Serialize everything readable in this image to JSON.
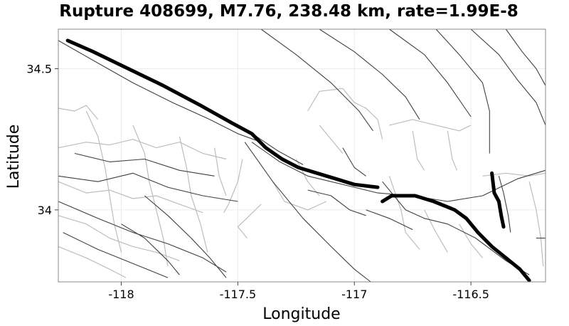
{
  "chart_data": {
    "type": "map",
    "title": "Rupture 408699, M7.76, 238.48 km, rate=1.99E-8",
    "xlabel": "Longitude",
    "ylabel": "Latitude",
    "xlim": [
      -118.27,
      -116.18
    ],
    "ylim": [
      33.745,
      34.64
    ],
    "grid": true,
    "x_ticks": [
      {
        "value": -118,
        "label": "-118"
      },
      {
        "value": -117.5,
        "label": "-117.5"
      },
      {
        "value": -117,
        "label": "-117"
      },
      {
        "value": -116.5,
        "label": "-116.5"
      }
    ],
    "y_ticks": [
      {
        "value": 34.5,
        "label": "34.5"
      },
      {
        "value": 34,
        "label": "34"
      }
    ],
    "colors": {
      "rupture": "#000000",
      "fault": "#404040",
      "subsection": "#bdbdbd",
      "grid": "#ececec",
      "frame": "#888888"
    },
    "rupture_traces": [
      {
        "name": "rupture-trace-main",
        "points": [
          [
            -118.23,
            34.6
          ],
          [
            -118.12,
            34.56
          ],
          [
            -117.97,
            34.5
          ],
          [
            -117.82,
            34.44
          ],
          [
            -117.66,
            34.37
          ],
          [
            -117.53,
            34.31
          ],
          [
            -117.44,
            34.27
          ],
          [
            -117.38,
            34.22
          ],
          [
            -117.31,
            34.18
          ],
          [
            -117.24,
            34.15
          ],
          [
            -117.16,
            34.13
          ],
          [
            -117.08,
            34.11
          ],
          [
            -117.0,
            34.09
          ],
          [
            -116.9,
            34.08
          ]
        ]
      },
      {
        "name": "rupture-trace-east",
        "points": [
          [
            -116.88,
            34.03
          ],
          [
            -116.84,
            34.05
          ],
          [
            -116.74,
            34.05
          ],
          [
            -116.66,
            34.03
          ],
          [
            -116.57,
            34.0
          ],
          [
            -116.52,
            33.97
          ],
          [
            -116.47,
            33.92
          ],
          [
            -116.41,
            33.87
          ],
          [
            -116.35,
            33.83
          ],
          [
            -116.29,
            33.79
          ],
          [
            -116.25,
            33.75
          ]
        ]
      },
      {
        "name": "rupture-trace-branch",
        "points": [
          [
            -116.41,
            34.13
          ],
          [
            -116.4,
            34.06
          ],
          [
            -116.38,
            34.03
          ],
          [
            -116.37,
            33.98
          ],
          [
            -116.36,
            33.94
          ]
        ]
      }
    ],
    "fault_traces": [
      [
        [
          -118.27,
          34.6
        ],
        [
          -118.1,
          34.52
        ],
        [
          -117.95,
          34.45
        ],
        [
          -117.78,
          34.38
        ],
        [
          -117.62,
          34.32
        ],
        [
          -117.5,
          34.27
        ],
        [
          -117.4,
          34.24
        ]
      ],
      [
        [
          -117.44,
          34.24
        ],
        [
          -117.32,
          34.17
        ],
        [
          -117.2,
          34.12
        ],
        [
          -117.1,
          34.1
        ],
        [
          -117.0,
          34.08
        ],
        [
          -116.9,
          34.06
        ],
        [
          -116.75,
          34.05
        ],
        [
          -116.6,
          34.03
        ],
        [
          -116.45,
          34.05
        ],
        [
          -116.3,
          34.11
        ],
        [
          -116.18,
          34.14
        ]
      ],
      [
        [
          -117.42,
          34.26
        ],
        [
          -117.33,
          34.21
        ],
        [
          -117.22,
          34.16
        ]
      ],
      [
        [
          -117.47,
          34.24
        ],
        [
          -117.35,
          34.1
        ],
        [
          -117.22,
          33.97
        ],
        [
          -117.1,
          33.87
        ],
        [
          -117.0,
          33.79
        ],
        [
          -116.93,
          33.745
        ]
      ],
      [
        [
          -118.27,
          34.12
        ],
        [
          -118.1,
          34.1
        ],
        [
          -117.95,
          34.13
        ],
        [
          -117.8,
          34.08
        ],
        [
          -117.65,
          34.05
        ],
        [
          -117.5,
          34.03
        ]
      ],
      [
        [
          -118.27,
          34.03
        ],
        [
          -118.1,
          33.97
        ],
        [
          -117.95,
          33.92
        ],
        [
          -117.8,
          33.88
        ],
        [
          -117.65,
          33.83
        ],
        [
          -117.55,
          33.78
        ]
      ],
      [
        [
          -118.25,
          33.92
        ],
        [
          -118.1,
          33.86
        ],
        [
          -117.95,
          33.81
        ],
        [
          -117.8,
          33.76
        ]
      ],
      [
        [
          -118.2,
          34.2
        ],
        [
          -118.05,
          34.17
        ],
        [
          -117.9,
          34.18
        ],
        [
          -117.75,
          34.14
        ],
        [
          -117.6,
          34.12
        ]
      ],
      [
        [
          -117.9,
          34.05
        ],
        [
          -117.8,
          33.98
        ],
        [
          -117.7,
          33.9
        ],
        [
          -117.62,
          33.83
        ],
        [
          -117.55,
          33.76
        ]
      ],
      [
        [
          -117.05,
          34.22
        ],
        [
          -117.0,
          34.15
        ],
        [
          -116.95,
          34.12
        ]
      ],
      [
        [
          -117.4,
          34.64
        ],
        [
          -117.25,
          34.55
        ],
        [
          -117.1,
          34.45
        ],
        [
          -116.98,
          34.35
        ],
        [
          -116.92,
          34.28
        ]
      ],
      [
        [
          -117.15,
          34.64
        ],
        [
          -117.0,
          34.56
        ],
        [
          -116.88,
          34.48
        ],
        [
          -116.78,
          34.4
        ],
        [
          -116.72,
          34.32
        ]
      ],
      [
        [
          -116.85,
          34.64
        ],
        [
          -116.7,
          34.55
        ],
        [
          -116.6,
          34.45
        ],
        [
          -116.5,
          34.33
        ]
      ],
      [
        [
          -116.65,
          34.64
        ],
        [
          -116.55,
          34.55
        ],
        [
          -116.45,
          34.45
        ],
        [
          -116.42,
          34.35
        ],
        [
          -116.42,
          34.2
        ]
      ],
      [
        [
          -116.5,
          34.64
        ],
        [
          -116.38,
          34.55
        ],
        [
          -116.3,
          34.46
        ],
        [
          -116.22,
          34.38
        ],
        [
          -116.18,
          34.3
        ]
      ],
      [
        [
          -116.35,
          34.64
        ],
        [
          -116.28,
          34.56
        ],
        [
          -116.22,
          34.5
        ],
        [
          -116.18,
          34.44
        ]
      ],
      [
        [
          -116.88,
          34.1
        ],
        [
          -116.78,
          34.0
        ],
        [
          -116.7,
          33.97
        ],
        [
          -116.6,
          33.95
        ],
        [
          -116.48,
          33.9
        ],
        [
          -116.35,
          33.82
        ],
        [
          -116.25,
          33.77
        ]
      ],
      [
        [
          -116.38,
          34.12
        ],
        [
          -116.36,
          34.06
        ],
        [
          -116.34,
          33.98
        ],
        [
          -116.33,
          33.92
        ]
      ],
      [
        [
          -117.2,
          34.07
        ],
        [
          -117.1,
          34.05
        ],
        [
          -117.02,
          34.0
        ],
        [
          -116.95,
          33.98
        ]
      ],
      [
        [
          -116.95,
          34.0
        ],
        [
          -116.85,
          33.97
        ],
        [
          -116.75,
          33.93
        ]
      ],
      [
        [
          -118.0,
          33.95
        ],
        [
          -117.9,
          33.9
        ],
        [
          -117.8,
          33.82
        ],
        [
          -117.75,
          33.77
        ]
      ],
      [
        [
          -116.22,
          33.9
        ],
        [
          -116.18,
          33.9
        ]
      ]
    ],
    "subsection_traces": [
      [
        [
          -118.27,
          34.36
        ],
        [
          -118.2,
          34.35
        ],
        [
          -118.15,
          34.37
        ],
        [
          -118.1,
          34.32
        ]
      ],
      [
        [
          -118.27,
          34.22
        ],
        [
          -118.15,
          34.24
        ],
        [
          -118.05,
          34.23
        ],
        [
          -117.95,
          34.25
        ],
        [
          -117.85,
          34.22
        ],
        [
          -117.75,
          34.24
        ],
        [
          -117.65,
          34.2
        ],
        [
          -117.55,
          34.18
        ]
      ],
      [
        [
          -118.27,
          34.1
        ],
        [
          -118.15,
          34.06
        ],
        [
          -118.05,
          34.07
        ],
        [
          -117.95,
          34.04
        ],
        [
          -117.85,
          34.05
        ],
        [
          -117.75,
          34.02
        ],
        [
          -117.65,
          33.99
        ]
      ],
      [
        [
          -118.27,
          33.98
        ],
        [
          -118.15,
          33.95
        ],
        [
          -118.05,
          33.9
        ],
        [
          -117.95,
          33.87
        ],
        [
          -117.85,
          33.85
        ],
        [
          -117.75,
          33.82
        ]
      ],
      [
        [
          -118.27,
          33.87
        ],
        [
          -118.15,
          33.83
        ],
        [
          -118.05,
          33.79
        ],
        [
          -117.98,
          33.76
        ]
      ],
      [
        [
          -118.15,
          34.35
        ],
        [
          -118.1,
          34.26
        ],
        [
          -118.07,
          34.15
        ],
        [
          -118.05,
          34.05
        ],
        [
          -118.03,
          33.95
        ],
        [
          -118.0,
          33.85
        ]
      ],
      [
        [
          -117.95,
          34.3
        ],
        [
          -117.9,
          34.2
        ],
        [
          -117.88,
          34.1
        ],
        [
          -117.85,
          34.0
        ],
        [
          -117.82,
          33.9
        ],
        [
          -117.8,
          33.8
        ]
      ],
      [
        [
          -117.75,
          34.26
        ],
        [
          -117.72,
          34.15
        ],
        [
          -117.7,
          34.05
        ],
        [
          -117.66,
          33.95
        ],
        [
          -117.63,
          33.85
        ]
      ],
      [
        [
          -117.6,
          34.22
        ],
        [
          -117.58,
          34.12
        ],
        [
          -117.55,
          34.05
        ]
      ],
      [
        [
          -117.48,
          34.18
        ],
        [
          -117.5,
          34.1
        ],
        [
          -117.54,
          34.02
        ],
        [
          -117.56,
          33.99
        ]
      ],
      [
        [
          -117.2,
          34.35
        ],
        [
          -117.15,
          34.42
        ],
        [
          -117.05,
          34.43
        ],
        [
          -117.0,
          34.38
        ],
        [
          -116.95,
          34.36
        ],
        [
          -116.9,
          34.32
        ],
        [
          -116.88,
          34.25
        ]
      ],
      [
        [
          -117.15,
          34.3
        ],
        [
          -117.1,
          34.25
        ],
        [
          -117.05,
          34.2
        ]
      ],
      [
        [
          -116.85,
          34.3
        ],
        [
          -116.75,
          34.32
        ],
        [
          -116.65,
          34.3
        ],
        [
          -116.55,
          34.28
        ],
        [
          -116.5,
          34.3
        ]
      ],
      [
        [
          -116.75,
          34.28
        ],
        [
          -116.73,
          34.18
        ],
        [
          -116.7,
          34.14
        ]
      ],
      [
        [
          -116.6,
          34.28
        ],
        [
          -116.58,
          34.18
        ],
        [
          -116.56,
          34.14
        ]
      ],
      [
        [
          -116.85,
          34.12
        ],
        [
          -116.8,
          34.0
        ],
        [
          -116.78,
          33.92
        ],
        [
          -116.72,
          33.86
        ]
      ],
      [
        [
          -116.7,
          34.0
        ],
        [
          -116.65,
          33.92
        ],
        [
          -116.6,
          33.85
        ]
      ],
      [
        [
          -116.55,
          33.95
        ],
        [
          -116.5,
          33.88
        ],
        [
          -116.45,
          33.83
        ]
      ],
      [
        [
          -117.35,
          34.1
        ],
        [
          -117.3,
          34.03
        ],
        [
          -117.2,
          34.0
        ],
        [
          -117.12,
          34.03
        ]
      ],
      [
        [
          -117.25,
          34.18
        ],
        [
          -117.2,
          34.1
        ],
        [
          -117.15,
          34.05
        ]
      ],
      [
        [
          -116.45,
          34.12
        ],
        [
          -116.35,
          34.13
        ],
        [
          -116.25,
          34.12
        ],
        [
          -116.18,
          34.13
        ]
      ],
      [
        [
          -116.25,
          34.1
        ],
        [
          -116.22,
          34.0
        ],
        [
          -116.2,
          33.9
        ],
        [
          -116.19,
          33.8
        ]
      ],
      [
        [
          -117.4,
          34.02
        ],
        [
          -117.45,
          33.98
        ],
        [
          -117.5,
          33.94
        ],
        [
          -117.46,
          33.9
        ]
      ]
    ]
  }
}
